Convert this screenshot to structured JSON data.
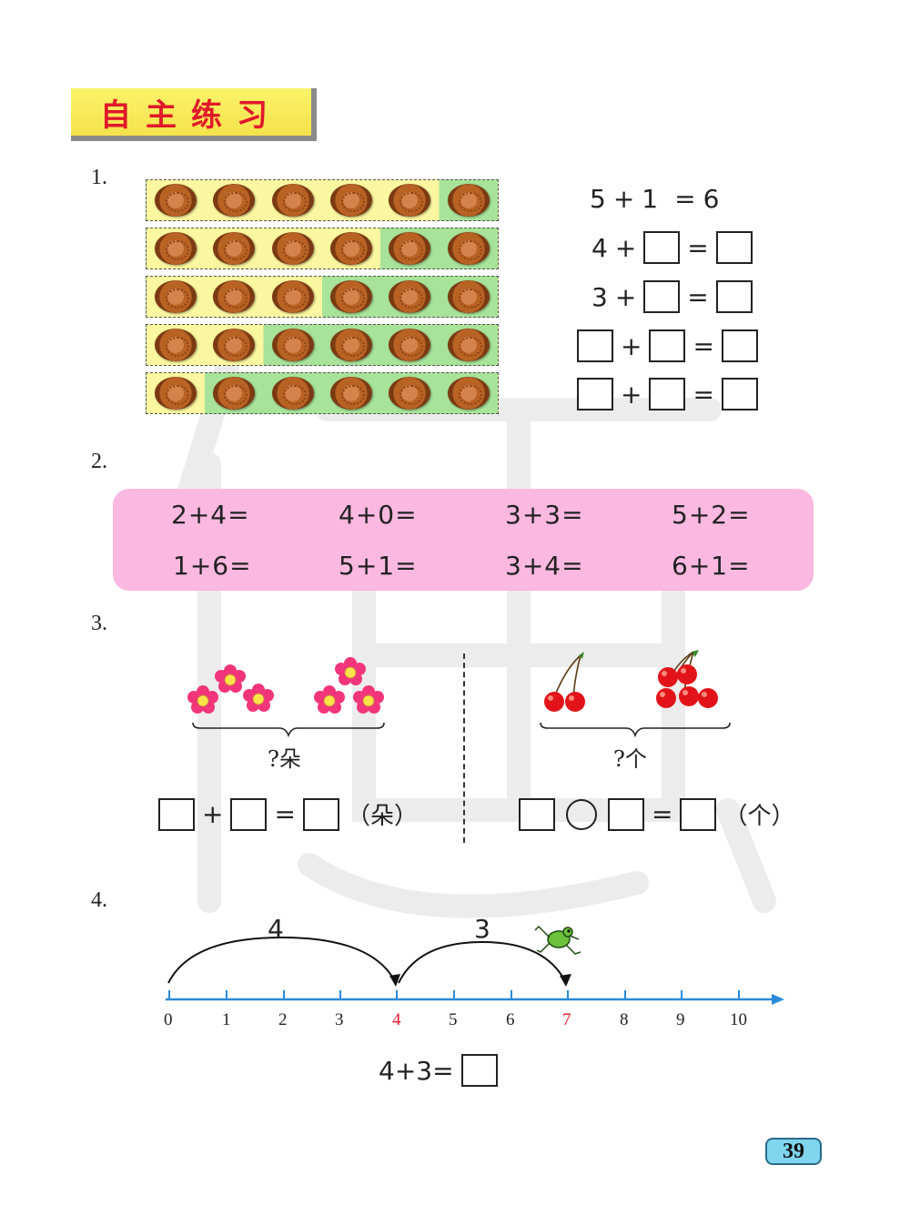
{
  "section_title": "自主练习",
  "q1": {
    "number": "1.",
    "equations": [
      {
        "a": "5",
        "op": "+",
        "b": "1",
        "eq": "=",
        "c": "6"
      },
      {
        "a": "4",
        "op": "+",
        "eq": "="
      },
      {
        "a": "3",
        "op": "+",
        "eq": "="
      },
      {
        "op": "+",
        "eq": "="
      },
      {
        "op": "+",
        "eq": "="
      }
    ]
  },
  "q2": {
    "number": "2.",
    "row1": [
      "2+4=",
      "4+0=",
      "3+3=",
      "5+2="
    ],
    "row2": [
      "1+6=",
      "5+1=",
      "3+4=",
      "6+1="
    ]
  },
  "q3": {
    "number": "3.",
    "left_question": "?朵",
    "left_plus": "+",
    "left_eq": "=",
    "left_unit": "（朵）",
    "right_question": "?个",
    "right_eq": "=",
    "right_unit": "（个）"
  },
  "q4": {
    "number": "4.",
    "arc1_label": "4",
    "arc2_label": "3",
    "ticks": [
      "0",
      "1",
      "2",
      "3",
      "4",
      "5",
      "6",
      "7",
      "8",
      "9",
      "10"
    ],
    "highlighted_ticks": [
      "4",
      "7"
    ],
    "equation": "4+3="
  },
  "page_number": "39",
  "colors": {
    "accent_red": "#e0182a",
    "axis_blue": "#2a8ad8",
    "panel_pink": "#fbb8e0",
    "highlight_yellow": "#fbf7a0",
    "highlight_green": "#a8e39a"
  }
}
